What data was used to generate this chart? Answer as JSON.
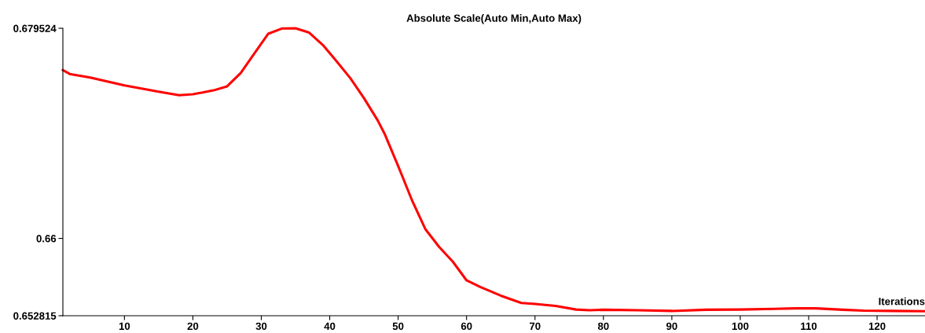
{
  "chart_data": {
    "type": "line",
    "title": "Absolute Scale(Auto Min,Auto Max)",
    "xlabel": "Iterations",
    "x": [
      1,
      2,
      5,
      10,
      15,
      18,
      20,
      23,
      25,
      27,
      29,
      31,
      33,
      35,
      37,
      39,
      41,
      43,
      45,
      47,
      48,
      50,
      52,
      54,
      56,
      58,
      60,
      62,
      65,
      68,
      70,
      73,
      76,
      78,
      80,
      85,
      90,
      95,
      100,
      105,
      108,
      111,
      115,
      118,
      122,
      127
    ],
    "series": [
      {
        "color": "#ff0000",
        "values": [
          0.67564,
          0.67528,
          0.67495,
          0.67421,
          0.67364,
          0.67331,
          0.67339,
          0.67375,
          0.67413,
          0.67537,
          0.6772,
          0.67901,
          0.6795,
          0.67952,
          0.67912,
          0.67797,
          0.67646,
          0.6749,
          0.67304,
          0.67098,
          0.66975,
          0.66673,
          0.66358,
          0.66084,
          0.6592,
          0.65783,
          0.6561,
          0.65549,
          0.65468,
          0.654,
          0.65391,
          0.65372,
          0.65339,
          0.65332,
          0.65337,
          0.65332,
          0.65326,
          0.65337,
          0.65339,
          0.65345,
          0.6535,
          0.6535,
          0.65337,
          0.65329,
          0.65326,
          0.65323
        ]
      }
    ],
    "xlim": [
      1,
      127
    ],
    "ylim": [
      0.652815,
      0.679524
    ],
    "xticks": [
      10,
      20,
      30,
      40,
      50,
      60,
      70,
      80,
      90,
      100,
      110,
      120
    ],
    "yticks": [
      0.652815,
      0.66,
      0.679524
    ],
    "grid": false,
    "legend": false,
    "marker": "none",
    "line_style": "solid"
  }
}
